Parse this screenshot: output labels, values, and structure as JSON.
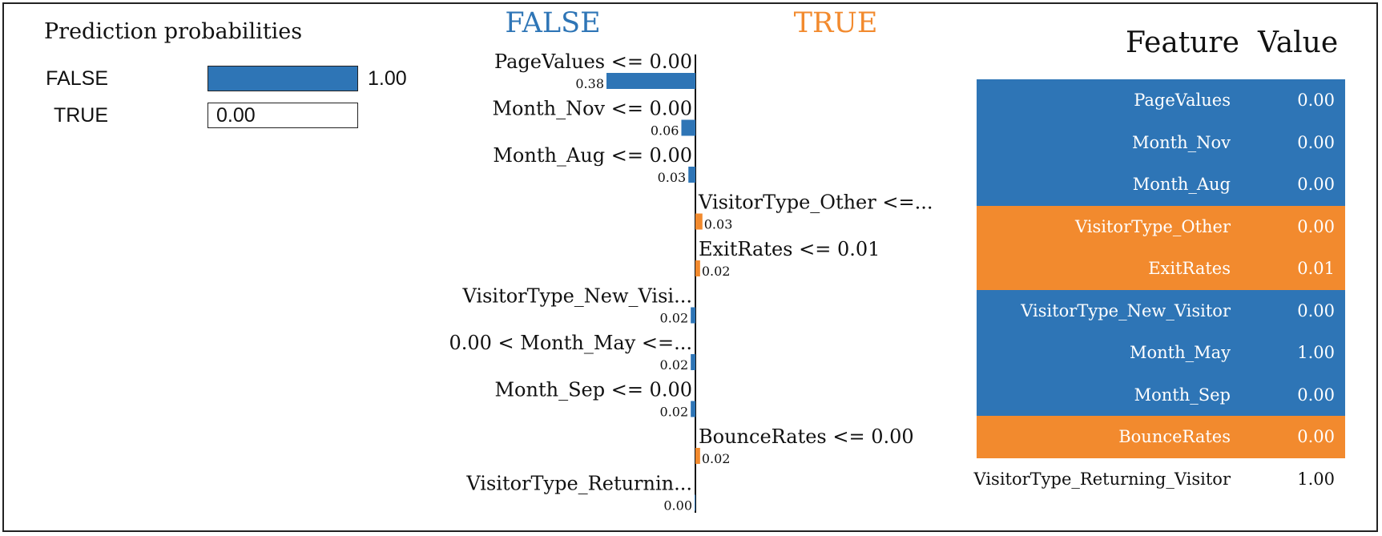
{
  "prediction_probabilities": {
    "title": "Prediction probabilities",
    "classes": [
      {
        "label": "FALSE",
        "value": 1.0,
        "display": "1.00",
        "color": "#2e75b6"
      },
      {
        "label": "TRUE",
        "value": 0.0,
        "display": "0.00",
        "color": "#f28a2e"
      }
    ]
  },
  "colors": {
    "negative": "#2e75b6",
    "positive": "#f28a2e"
  },
  "chart_data": {
    "type": "bar",
    "orientation": "horizontal",
    "class_headers": {
      "negative": "FALSE",
      "positive": "TRUE"
    },
    "bars": [
      {
        "label": "PageValues <= 0.00",
        "value": 0.38,
        "display": "0.38",
        "class": "FALSE"
      },
      {
        "label": "Month_Nov <= 0.00",
        "value": 0.06,
        "display": "0.06",
        "class": "FALSE"
      },
      {
        "label": "Month_Aug <= 0.00",
        "value": 0.03,
        "display": "0.03",
        "class": "FALSE"
      },
      {
        "label": "VisitorType_Other <=...",
        "value": 0.03,
        "display": "0.03",
        "class": "TRUE"
      },
      {
        "label": "ExitRates <= 0.01",
        "value": 0.02,
        "display": "0.02",
        "class": "TRUE"
      },
      {
        "label": "VisitorType_New_Visi...",
        "value": 0.02,
        "display": "0.02",
        "class": "FALSE"
      },
      {
        "label": "0.00 < Month_May <=...",
        "value": 0.02,
        "display": "0.02",
        "class": "FALSE"
      },
      {
        "label": "Month_Sep <= 0.00",
        "value": 0.02,
        "display": "0.02",
        "class": "FALSE"
      },
      {
        "label": "BounceRates <= 0.00",
        "value": 0.02,
        "display": "0.02",
        "class": "TRUE"
      },
      {
        "label": "VisitorType_Returnin...",
        "value": 0.0,
        "display": "0.00",
        "class": "FALSE"
      }
    ]
  },
  "feature_table": {
    "headers": {
      "feature": "Feature",
      "value": "Value"
    },
    "rows": [
      {
        "feature": "PageValues",
        "value": "0.00",
        "class": "FALSE"
      },
      {
        "feature": "Month_Nov",
        "value": "0.00",
        "class": "FALSE"
      },
      {
        "feature": "Month_Aug",
        "value": "0.00",
        "class": "FALSE"
      },
      {
        "feature": "VisitorType_Other",
        "value": "0.00",
        "class": "TRUE"
      },
      {
        "feature": "ExitRates",
        "value": "0.01",
        "class": "TRUE"
      },
      {
        "feature": "VisitorType_New_Visitor",
        "value": "0.00",
        "class": "FALSE"
      },
      {
        "feature": "Month_May",
        "value": "1.00",
        "class": "FALSE"
      },
      {
        "feature": "Month_Sep",
        "value": "0.00",
        "class": "FALSE"
      },
      {
        "feature": "BounceRates",
        "value": "0.00",
        "class": "TRUE"
      },
      {
        "feature": "VisitorType_Returning_Visitor",
        "value": "1.00",
        "class": "NONE"
      }
    ]
  }
}
